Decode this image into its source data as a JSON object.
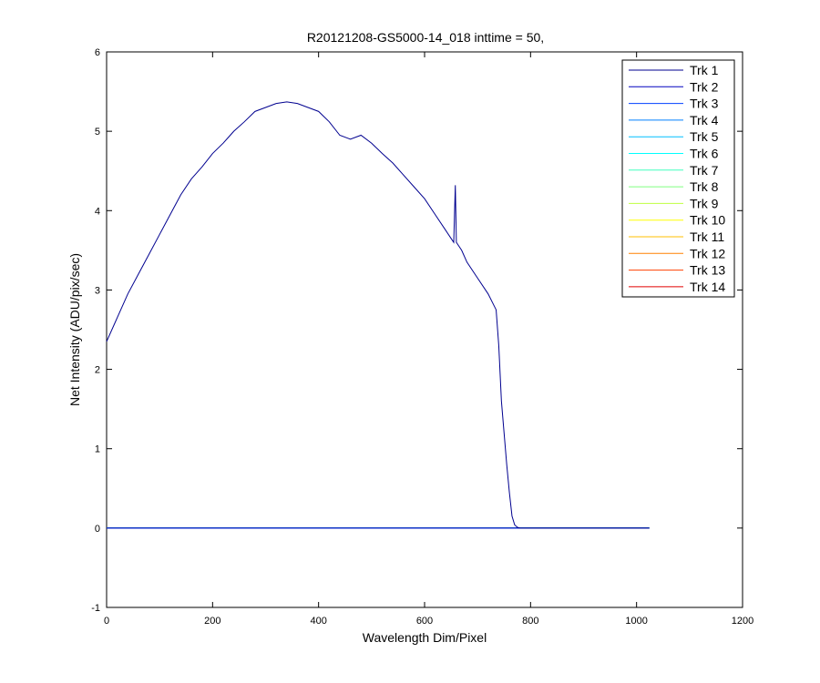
{
  "chart_data": {
    "type": "line",
    "title": "R20121208-GS5000-14_018 inttime = 50,",
    "xlabel": "Wavelength Dim/Pixel",
    "ylabel": "Net Intensity (ADU/pix/sec)",
    "xlim": [
      0,
      1200
    ],
    "ylim": [
      -1,
      6
    ],
    "xticks": [
      0,
      200,
      400,
      600,
      800,
      1000,
      1200
    ],
    "yticks": [
      -1,
      0,
      1,
      2,
      3,
      4,
      5,
      6
    ],
    "grid": false,
    "legend_position": "top-right",
    "series": [
      {
        "name": "Trk 1",
        "color": "#00008F",
        "x": [
          0,
          20,
          40,
          60,
          80,
          100,
          120,
          140,
          160,
          180,
          200,
          220,
          240,
          260,
          280,
          300,
          320,
          340,
          360,
          380,
          400,
          420,
          440,
          460,
          480,
          500,
          520,
          540,
          560,
          580,
          600,
          620,
          640,
          650,
          655,
          658,
          660,
          670,
          680,
          700,
          720,
          735,
          740,
          745,
          750,
          755,
          760,
          765,
          770,
          775,
          780,
          800,
          1024
        ],
        "y": [
          2.35,
          2.65,
          2.95,
          3.2,
          3.45,
          3.7,
          3.95,
          4.2,
          4.4,
          4.55,
          4.72,
          4.85,
          5.0,
          5.12,
          5.25,
          5.3,
          5.35,
          5.37,
          5.35,
          5.3,
          5.25,
          5.12,
          4.95,
          4.9,
          4.95,
          4.85,
          4.72,
          4.6,
          4.45,
          4.3,
          4.15,
          3.95,
          3.75,
          3.65,
          3.6,
          4.32,
          3.6,
          3.5,
          3.35,
          3.15,
          2.95,
          2.75,
          2.3,
          1.6,
          1.2,
          0.8,
          0.45,
          0.15,
          0.04,
          0.01,
          0.0,
          0.0,
          0.0
        ]
      },
      {
        "name": "Trk 2",
        "color": "#0000BF",
        "x": [
          0,
          1024
        ],
        "y": [
          0.0,
          0.0
        ]
      },
      {
        "name": "Trk 3",
        "color": "#0040FF",
        "x": [
          0,
          1024
        ],
        "y": [
          0.0,
          0.0
        ]
      },
      {
        "name": "Trk 4",
        "color": "#0080FF",
        "x": [
          0,
          1024
        ],
        "y": [
          0.0,
          0.0
        ]
      },
      {
        "name": "Trk 5",
        "color": "#00BFFF",
        "x": [
          0,
          1024
        ],
        "y": [
          0.0,
          0.0
        ]
      },
      {
        "name": "Trk 6",
        "color": "#00FFFF",
        "x": [
          0,
          1024
        ],
        "y": [
          0.0,
          0.0
        ]
      },
      {
        "name": "Trk 7",
        "color": "#40FFBF",
        "x": [
          0,
          1024
        ],
        "y": [
          0.0,
          0.0
        ]
      },
      {
        "name": "Trk 8",
        "color": "#80FF80",
        "x": [
          0,
          1024
        ],
        "y": [
          0.0,
          0.0
        ]
      },
      {
        "name": "Trk 9",
        "color": "#BFFF40",
        "x": [
          0,
          1024
        ],
        "y": [
          0.0,
          0.0
        ]
      },
      {
        "name": "Trk 10",
        "color": "#FFFF00",
        "x": [
          0,
          1024
        ],
        "y": [
          0.0,
          0.0
        ]
      },
      {
        "name": "Trk 11",
        "color": "#FFBF00",
        "x": [
          0,
          1024
        ],
        "y": [
          0.0,
          0.0
        ]
      },
      {
        "name": "Trk 12",
        "color": "#FF8000",
        "x": [
          0,
          1024
        ],
        "y": [
          0.0,
          0.0
        ]
      },
      {
        "name": "Trk 13",
        "color": "#FF4000",
        "x": [
          0,
          1024
        ],
        "y": [
          0.0,
          0.0
        ]
      },
      {
        "name": "Trk 14",
        "color": "#E00000",
        "x": [
          0,
          1024
        ],
        "y": [
          0.0,
          0.0
        ]
      }
    ]
  }
}
